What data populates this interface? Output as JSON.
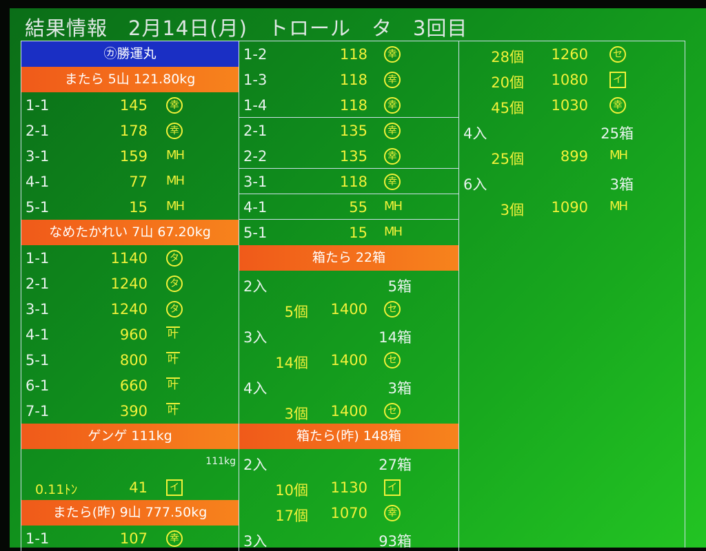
{
  "title": "結果情報　2月14日(月)　トロール　タ　3回目",
  "colors": {
    "background": "#0f8a1c",
    "header_blue": "#1a2fc4",
    "header_orange": "#f2701b",
    "value": "#f2f23a",
    "text": "#e8f4ee"
  },
  "columns": [
    [
      {
        "t": "hdr",
        "c": "blue",
        "text": "㋕勝運丸"
      },
      {
        "t": "hdr",
        "c": "orange",
        "text": "またら 5山 121.80kg"
      },
      {
        "t": "item",
        "code": "1-1",
        "value": "145",
        "mark": "幸",
        "ms": "circle"
      },
      {
        "t": "item",
        "code": "2-1",
        "value": "178",
        "mark": "幸",
        "ms": "circle"
      },
      {
        "t": "item",
        "code": "3-1",
        "value": "159",
        "mark": "MH",
        "ms": "mh"
      },
      {
        "t": "item",
        "code": "4-1",
        "value": "77",
        "mark": "MH",
        "ms": "mh"
      },
      {
        "t": "item",
        "code": "5-1",
        "value": "15",
        "mark": "MH",
        "ms": "mh"
      },
      {
        "t": "hdr",
        "c": "orange",
        "text": "なめたかれい 7山 67.20kg"
      },
      {
        "t": "item",
        "code": "1-1",
        "value": "1140",
        "mark": "タ",
        "ms": "circle"
      },
      {
        "t": "item",
        "code": "2-1",
        "value": "1240",
        "mark": "タ",
        "ms": "circle"
      },
      {
        "t": "item",
        "code": "3-1",
        "value": "1240",
        "mark": "タ",
        "ms": "circle"
      },
      {
        "t": "item",
        "code": "4-1",
        "value": "960",
        "mark": "叶",
        "ms": "ken"
      },
      {
        "t": "item",
        "code": "5-1",
        "value": "800",
        "mark": "叶",
        "ms": "ken"
      },
      {
        "t": "item",
        "code": "6-1",
        "value": "660",
        "mark": "叶",
        "ms": "ken"
      },
      {
        "t": "item",
        "code": "7-1",
        "value": "390",
        "mark": "叶",
        "ms": "ken"
      },
      {
        "t": "hdr",
        "c": "orange",
        "text": "ゲンゲ 111kg"
      },
      {
        "t": "note",
        "text": "111kg"
      },
      {
        "t": "ton",
        "ton": "0.11ﾄﾝ",
        "value": "41",
        "mark": "イ",
        "ms": "box"
      },
      {
        "t": "hdr",
        "c": "orange",
        "text": "またら(昨) 9山 777.50kg"
      },
      {
        "t": "item",
        "code": "1-1",
        "value": "107",
        "mark": "幸",
        "ms": "circle"
      }
    ],
    [
      {
        "t": "item",
        "code": "1-2",
        "value": "118",
        "mark": "幸",
        "ms": "circle"
      },
      {
        "t": "item",
        "code": "1-3",
        "value": "118",
        "mark": "幸",
        "ms": "circle"
      },
      {
        "t": "item",
        "code": "1-4",
        "value": "118",
        "mark": "幸",
        "ms": "circle",
        "sep": true
      },
      {
        "t": "item",
        "code": "2-1",
        "value": "135",
        "mark": "幸",
        "ms": "circle"
      },
      {
        "t": "item",
        "code": "2-2",
        "value": "135",
        "mark": "幸",
        "ms": "circle",
        "sep": true
      },
      {
        "t": "item",
        "code": "3-1",
        "value": "118",
        "mark": "幸",
        "ms": "circle",
        "sep": true
      },
      {
        "t": "item",
        "code": "4-1",
        "value": "55",
        "mark": "MH",
        "ms": "mh",
        "sep": true
      },
      {
        "t": "item",
        "code": "5-1",
        "value": "15",
        "mark": "MH",
        "ms": "mh"
      },
      {
        "t": "hdr",
        "c": "orange",
        "text": "箱たら 22箱"
      },
      {
        "t": "group",
        "left": "2入",
        "right": "5箱"
      },
      {
        "t": "sub",
        "count": "5個",
        "value": "1400",
        "mark": "セ",
        "ms": "circle"
      },
      {
        "t": "group",
        "left": "3入",
        "right": "14箱"
      },
      {
        "t": "sub",
        "count": "14個",
        "value": "1400",
        "mark": "セ",
        "ms": "circle"
      },
      {
        "t": "group",
        "left": "4入",
        "right": "3箱"
      },
      {
        "t": "sub",
        "count": "3個",
        "value": "1400",
        "mark": "セ",
        "ms": "circle"
      },
      {
        "t": "hdr",
        "c": "orange",
        "text": "箱たら(昨) 148箱"
      },
      {
        "t": "group",
        "left": "2入",
        "right": "27箱"
      },
      {
        "t": "sub",
        "count": "10個",
        "value": "1130",
        "mark": "イ",
        "ms": "box"
      },
      {
        "t": "sub",
        "count": "17個",
        "value": "1070",
        "mark": "幸",
        "ms": "circle"
      },
      {
        "t": "group",
        "left": "3入",
        "right": "93箱"
      }
    ],
    [
      {
        "t": "sub",
        "count": "28個",
        "value": "1260",
        "mark": "セ",
        "ms": "circle"
      },
      {
        "t": "sub",
        "count": "20個",
        "value": "1080",
        "mark": "イ",
        "ms": "box"
      },
      {
        "t": "sub",
        "count": "45個",
        "value": "1030",
        "mark": "幸",
        "ms": "circle"
      },
      {
        "t": "group",
        "left": "4入",
        "right": "25箱"
      },
      {
        "t": "sub",
        "count": "25個",
        "value": "899",
        "mark": "MH",
        "ms": "mh"
      },
      {
        "t": "group",
        "left": "6入",
        "right": "3箱"
      },
      {
        "t": "sub",
        "count": "3個",
        "value": "1090",
        "mark": "MH",
        "ms": "mh"
      }
    ]
  ]
}
